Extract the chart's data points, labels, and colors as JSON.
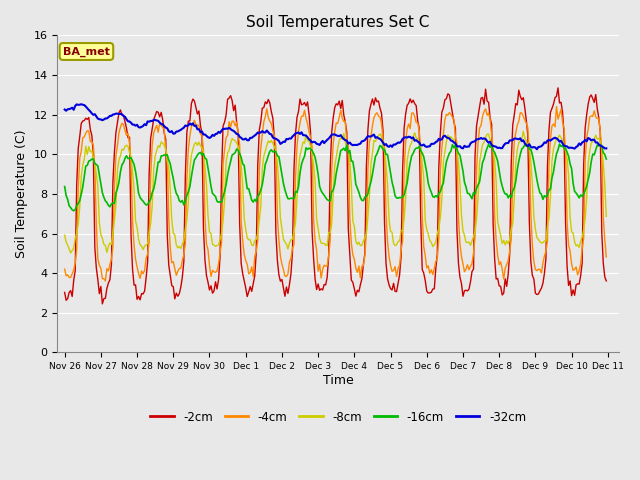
{
  "title": "Soil Temperatures Set C",
  "xlabel": "Time",
  "ylabel": "Soil Temperature (C)",
  "ylim": [
    0,
    16
  ],
  "yticks": [
    0,
    2,
    4,
    6,
    8,
    10,
    12,
    14,
    16
  ],
  "xtick_labels": [
    "Nov 26",
    "Nov 27",
    "Nov 28",
    "Nov 29",
    "Nov 30",
    "Dec 1",
    "Dec 2",
    "Dec 3",
    "Dec 4",
    "Dec 5",
    "Dec 6",
    "Dec 7",
    "Dec 8",
    "Dec 9",
    "Dec 10",
    "Dec 11"
  ],
  "legend_labels": [
    "-2cm",
    "-4cm",
    "-8cm",
    "-16cm",
    "-32cm"
  ],
  "line_colors": [
    "#cc0000",
    "#ff8800",
    "#cccc00",
    "#00bb00",
    "#0000dd"
  ],
  "annotation_text": "BA_met",
  "annotation_bg": "#ffff99",
  "annotation_border": "#999900",
  "bg_color": "#e8e8e8",
  "grid_color": "#ffffff",
  "title_fontsize": 11,
  "axis_fontsize": 9,
  "tick_fontsize": 8
}
